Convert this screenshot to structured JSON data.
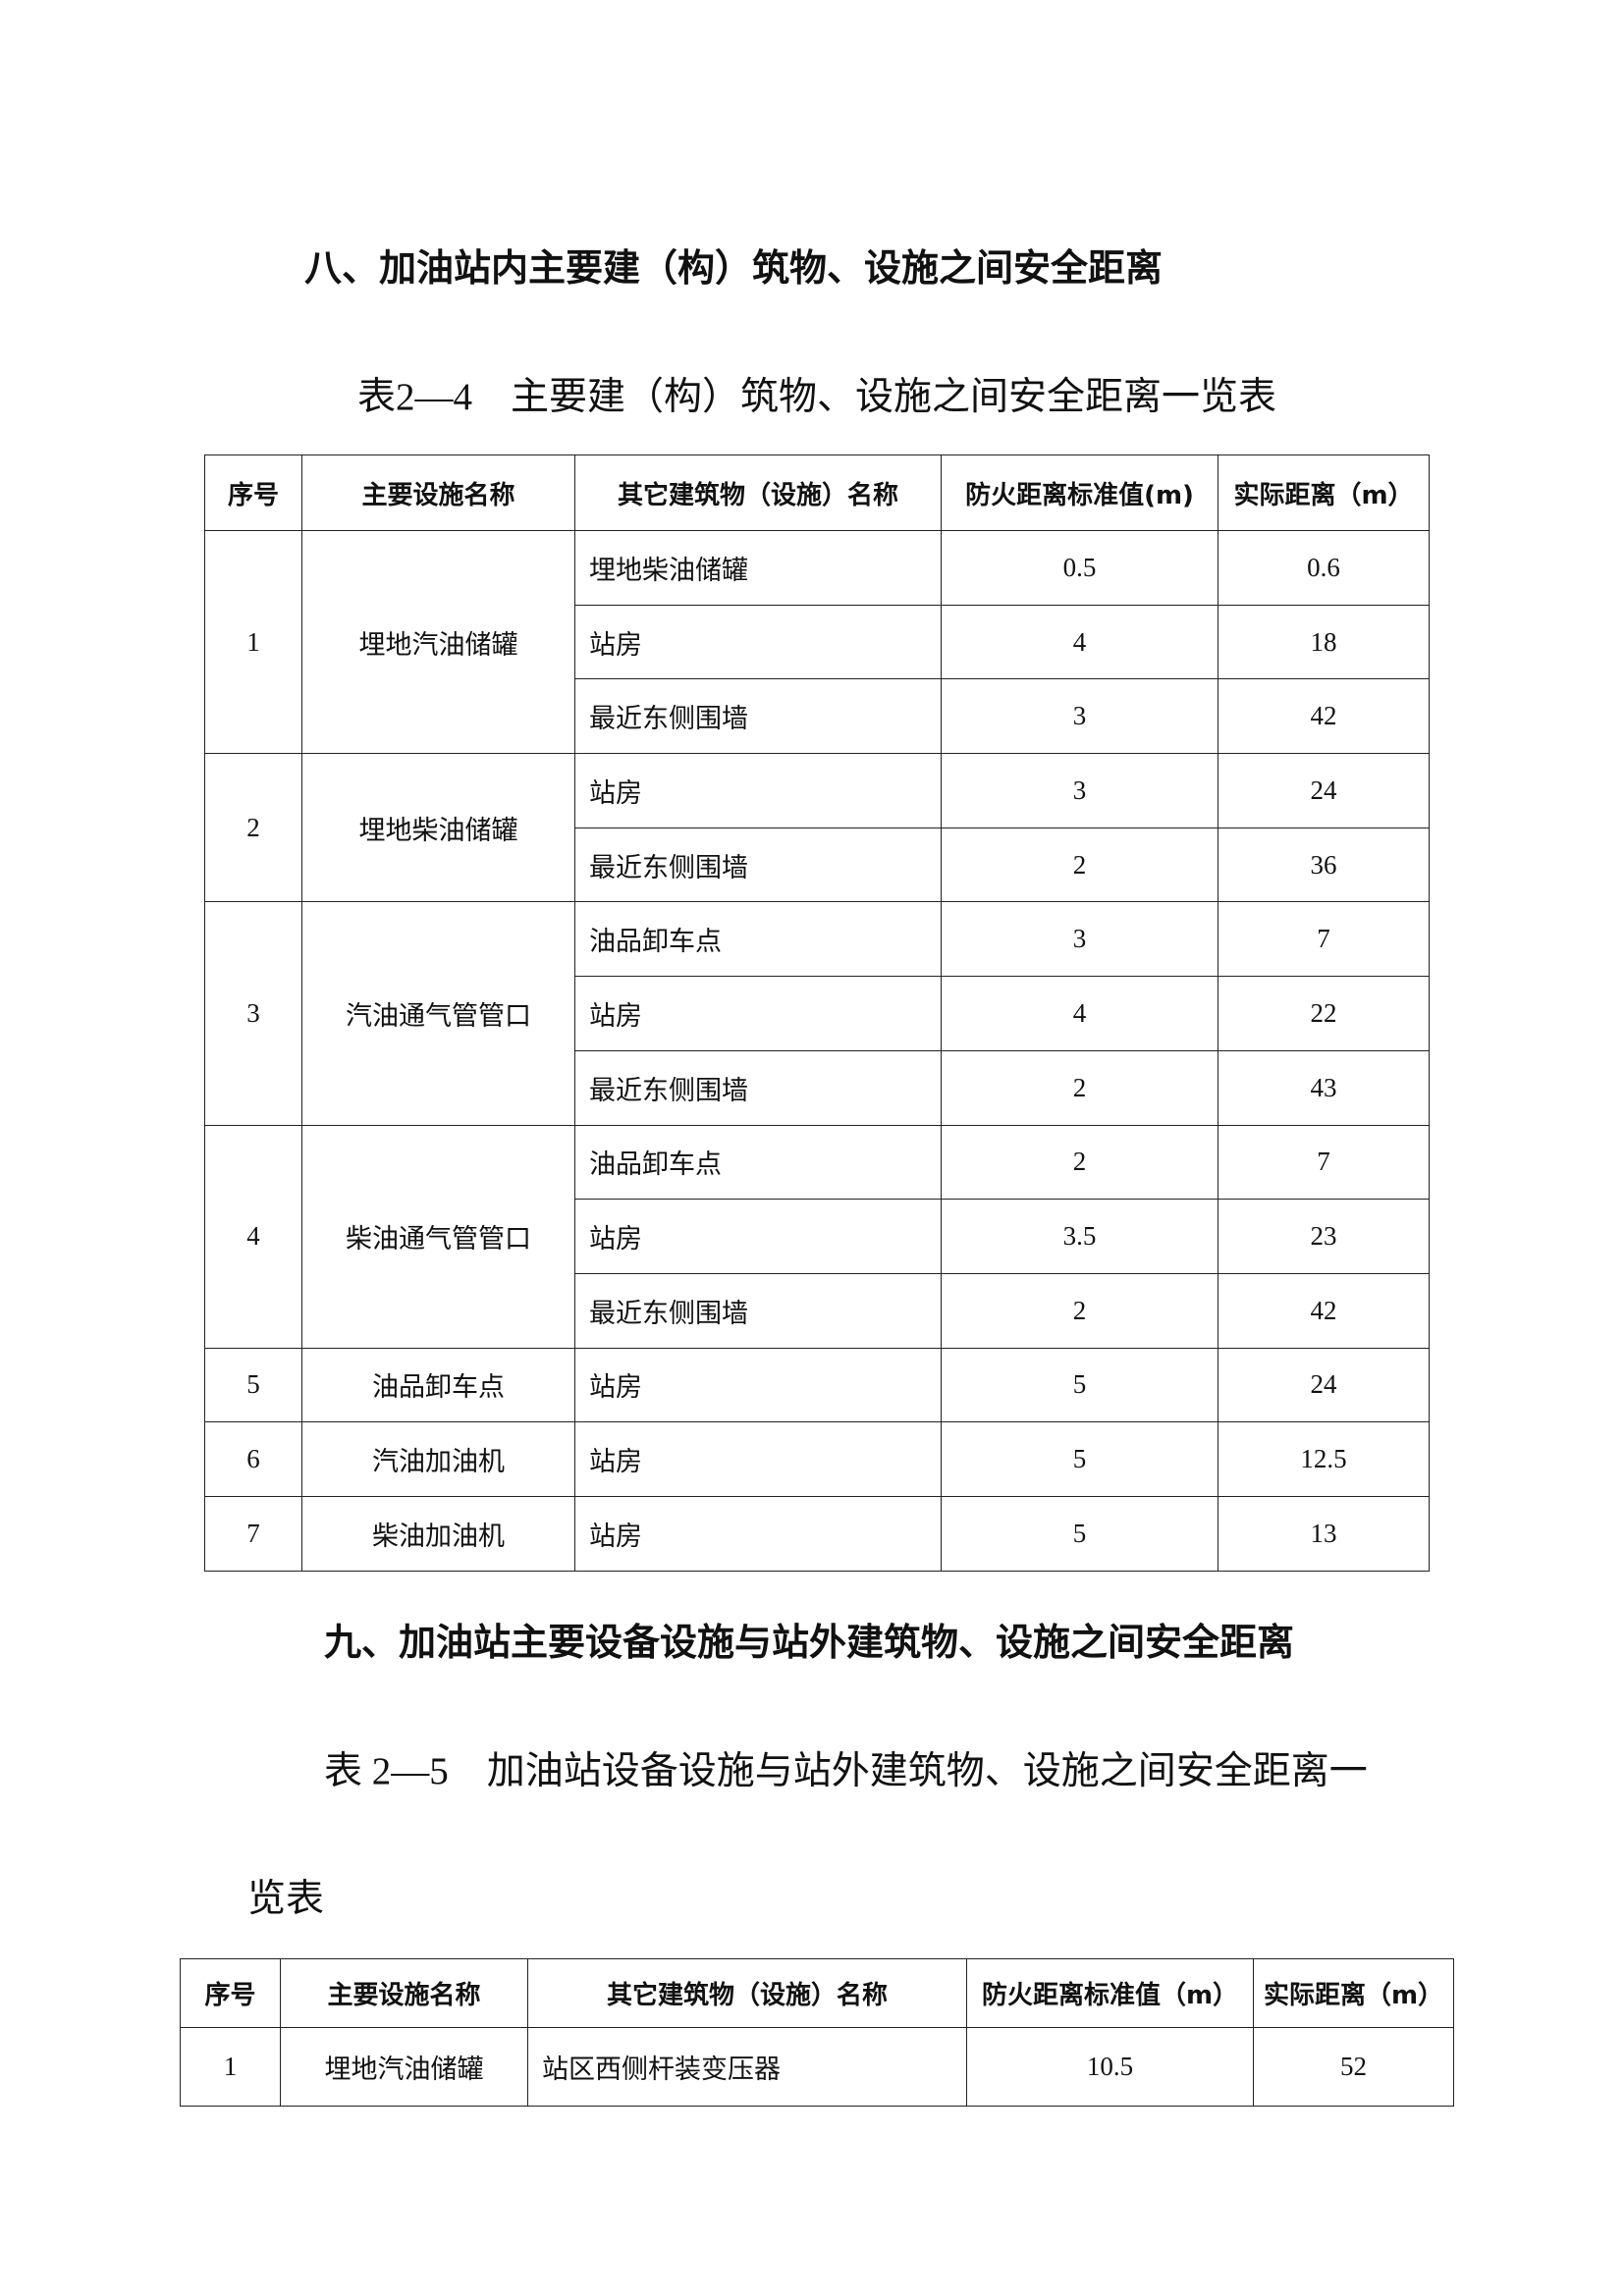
{
  "section8": {
    "heading": "八、加油站内主要建（构）筑物、设施之间安全距离",
    "caption": "表2—4　主要建（构）筑物、设施之间安全距离一览表",
    "headers": [
      "序号",
      "主要设施名称",
      "其它建筑物（设施）名称",
      "防火距离标准值(m)",
      "实际距离（m）"
    ],
    "groups": [
      {
        "no": "1",
        "name": "埋地汽油储罐",
        "rows": [
          [
            "埋地柴油储罐",
            "0.5",
            "0.6"
          ],
          [
            "站房",
            "4",
            "18"
          ],
          [
            "最近东侧围墙",
            "3",
            "42"
          ]
        ]
      },
      {
        "no": "2",
        "name": "埋地柴油储罐",
        "rows": [
          [
            "站房",
            "3",
            "24"
          ],
          [
            "最近东侧围墙",
            "2",
            "36"
          ]
        ]
      },
      {
        "no": "3",
        "name": "汽油通气管管口",
        "rows": [
          [
            "油品卸车点",
            "3",
            "7"
          ],
          [
            "站房",
            "4",
            "22"
          ],
          [
            "最近东侧围墙",
            "2",
            "43"
          ]
        ]
      },
      {
        "no": "4",
        "name": "柴油通气管管口",
        "rows": [
          [
            "油品卸车点",
            "2",
            "7"
          ],
          [
            "站房",
            "3.5",
            "23"
          ],
          [
            "最近东侧围墙",
            "2",
            "42"
          ]
        ]
      },
      {
        "no": "5",
        "name": "油品卸车点",
        "rows": [
          [
            "站房",
            "5",
            "24"
          ]
        ]
      },
      {
        "no": "6",
        "name": "汽油加油机",
        "rows": [
          [
            "站房",
            "5",
            "12.5"
          ]
        ]
      },
      {
        "no": "7",
        "name": "柴油加油机",
        "rows": [
          [
            "站房",
            "5",
            "13"
          ]
        ]
      }
    ]
  },
  "section9": {
    "heading": "九、加油站主要设备设施与站外建筑物、设施之间安全距离",
    "caption_line1": "表 2—5　加油站设备设施与站外建筑物、设施之间安全距离一",
    "caption_line2": "览表",
    "headers": [
      "序号",
      "主要设施名称",
      "其它建筑物（设施）名称",
      "防火距离标准值（m）",
      "实际距离（m）"
    ],
    "groups": [
      {
        "no": "1",
        "name": "埋地汽油储罐",
        "rows": [
          [
            "站区西侧杆装变压器",
            "10.5",
            "52"
          ]
        ]
      }
    ]
  }
}
